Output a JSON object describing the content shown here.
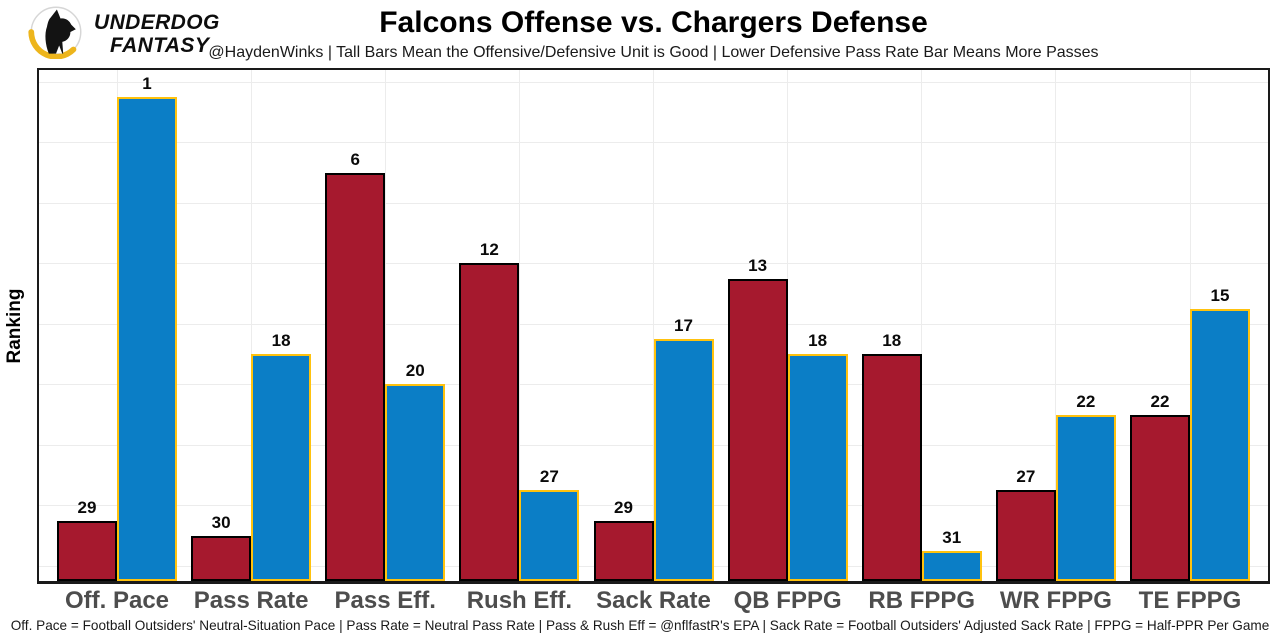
{
  "brand": {
    "line1": "UNDERDOG",
    "line2": "FANTASY"
  },
  "header": {
    "title": "Falcons Offense vs. Chargers Defense",
    "subtitle": "@HaydenWinks | Tall Bars Mean the Offensive/Defensive Unit is Good | Lower Defensive Pass Rate Bar Means More Passes"
  },
  "chart_data": {
    "type": "bar",
    "title": "Falcons Offense vs. Chargers Defense",
    "ylabel": "Ranking",
    "xlabel": "",
    "categories": [
      "Off. Pace",
      "Pass Rate",
      "Pass Eff.",
      "Rush Eff.",
      "Sack Rate",
      "QB FPPG",
      "RB FPPG",
      "WR FPPG",
      "TE FPPG"
    ],
    "series": [
      {
        "name": "Falcons Offense rank",
        "color": "#A6192E",
        "border_color": "#000000",
        "values": [
          29,
          30,
          6,
          12,
          29,
          13,
          18,
          27,
          22
        ]
      },
      {
        "name": "Chargers Defense rank",
        "color": "#0B7EC6",
        "border_color": "#FFC20E",
        "values": [
          1,
          18,
          20,
          27,
          17,
          18,
          31,
          22,
          15
        ]
      }
    ],
    "value_encoding": "bar height = 33 - rank (rank 1 is tallest, rank 32 shortest); rank number printed above each bar",
    "ylim": [
      0,
      33.3
    ],
    "grid": true,
    "legend": "none",
    "colors": {
      "grid": "#ececec",
      "axis": "#1a1a1a",
      "x_tick_label": "#4d4d4d",
      "brand_gold": "#EDB51C"
    }
  },
  "footer": {
    "note": "Off. Pace = Football Outsiders' Neutral-Situation Pace | Pass Rate = Neutral Pass Rate | Pass & Rush Eff = @nflfastR's EPA | Sack Rate = Football Outsiders' Adjusted Sack Rate | FPPG = Half-PPR Per Game"
  }
}
